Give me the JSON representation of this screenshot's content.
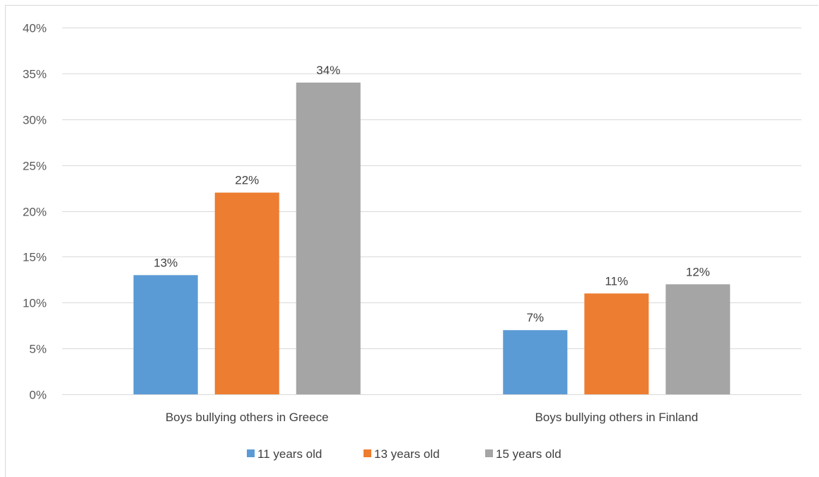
{
  "chart_data": {
    "type": "bar",
    "title": "",
    "xlabel": "",
    "ylabel": "",
    "ylim": [
      0,
      40
    ],
    "yticks": [
      0,
      5,
      10,
      15,
      20,
      25,
      30,
      35,
      40
    ],
    "ytick_labels": [
      "0%",
      "5%",
      "10%",
      "15%",
      "20%",
      "25%",
      "30%",
      "35%",
      "40%"
    ],
    "grid": true,
    "legend_position": "bottom",
    "categories": [
      "Boys bullying others in Greece",
      "Boys bullying others in Finland"
    ],
    "series": [
      {
        "name": "11 years old",
        "color": "#5b9bd5",
        "values": [
          13,
          7
        ],
        "labels": [
          "13%",
          "7%"
        ]
      },
      {
        "name": "13 years old",
        "color": "#ed7d31",
        "values": [
          22,
          11
        ],
        "labels": [
          "22%",
          "11%"
        ]
      },
      {
        "name": "15 years old",
        "color": "#a5a5a5",
        "values": [
          34,
          12
        ],
        "labels": [
          "34%",
          "12%"
        ]
      }
    ]
  }
}
